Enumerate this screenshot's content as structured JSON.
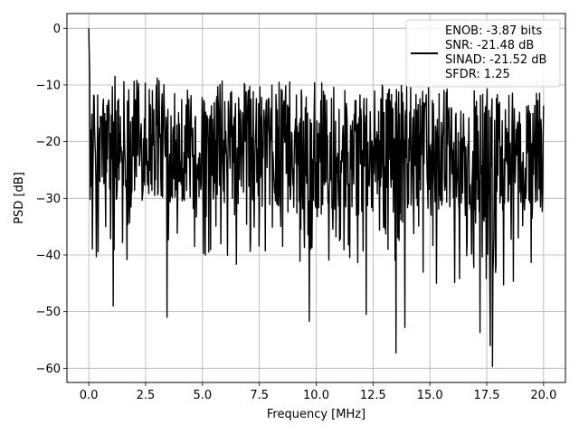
{
  "chart_data": {
    "type": "line",
    "title": "",
    "xlabel": "Frequency [MHz]",
    "ylabel": "PSD [dB]",
    "xlim": [
      -0.96,
      20.96
    ],
    "ylim": [
      -62.5,
      2.6
    ],
    "xticks": [
      0.0,
      2.5,
      5.0,
      7.5,
      10.0,
      12.5,
      15.0,
      17.5,
      20.0
    ],
    "xtick_labels": [
      "0.0",
      "2.5",
      "5.0",
      "7.5",
      "10.0",
      "12.5",
      "15.0",
      "17.5",
      "20.0"
    ],
    "yticks": [
      0,
      -10,
      -20,
      -30,
      -40,
      -50,
      -60
    ],
    "ytick_labels": [
      "0",
      "−10",
      "−20",
      "−30",
      "−40",
      "−50",
      "−60"
    ],
    "grid": true,
    "legend_position": "upper right",
    "legend_lines": [
      "ENOB: -3.87 bits",
      "SNR: -21.48 dB",
      "SINAD: -21.52 dB",
      "SFDR: 1.25"
    ],
    "series_color": "#000000",
    "noise_profile": {
      "freq_range": [
        0.0,
        20.0
      ],
      "num_points": 1024,
      "upper_envelope_db": [
        -11,
        -14
      ],
      "lower_envelope_db": [
        -30,
        -34
      ],
      "peak_db": 0.0,
      "peak_freq": 0.0
    },
    "notable_dips": [
      {
        "x": 1.07,
        "y": -49
      },
      {
        "x": 3.45,
        "y": -51
      },
      {
        "x": 9.7,
        "y": -51.7
      },
      {
        "x": 12.2,
        "y": -50.5
      },
      {
        "x": 13.5,
        "y": -57.3
      },
      {
        "x": 13.9,
        "y": -52.8
      },
      {
        "x": 17.2,
        "y": -53.7
      },
      {
        "x": 17.75,
        "y": -59.7
      },
      {
        "x": 17.65,
        "y": -56
      }
    ]
  }
}
